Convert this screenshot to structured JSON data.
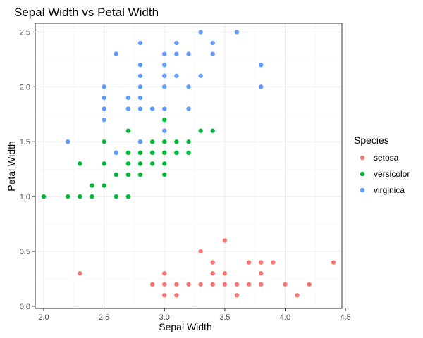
{
  "chart_data": {
    "type": "scatter",
    "title": "Sepal Width vs Petal Width",
    "xlabel": "Sepal Width",
    "ylabel": "Petal Width",
    "xlim": [
      1.93,
      4.47
    ],
    "ylim": [
      -0.02,
      2.58
    ],
    "x_ticks": [
      2.0,
      2.5,
      3.0,
      3.5,
      4.0,
      4.5
    ],
    "x_tick_labels": [
      "2.0",
      "2.5",
      "3.0",
      "3.5",
      "4.0",
      "4.5"
    ],
    "y_ticks": [
      0.0,
      0.5,
      1.0,
      1.5,
      2.0,
      2.5
    ],
    "y_tick_labels": [
      "0.0",
      "0.5",
      "1.0",
      "1.5",
      "2.0",
      "2.5"
    ],
    "grid": true,
    "legend": {
      "title": "Species",
      "position": "right"
    },
    "series": [
      {
        "name": "setosa",
        "color": "#F8766D",
        "points": [
          [
            2.3,
            0.3
          ],
          [
            2.9,
            0.2
          ],
          [
            3.0,
            0.3
          ],
          [
            3.0,
            0.2
          ],
          [
            3.0,
            0.1
          ],
          [
            3.1,
            0.2
          ],
          [
            3.1,
            0.1
          ],
          [
            3.2,
            0.2
          ],
          [
            3.3,
            0.5
          ],
          [
            3.3,
            0.2
          ],
          [
            3.4,
            0.4
          ],
          [
            3.4,
            0.3
          ],
          [
            3.4,
            0.2
          ],
          [
            3.5,
            0.6
          ],
          [
            3.5,
            0.3
          ],
          [
            3.5,
            0.2
          ],
          [
            3.6,
            0.2
          ],
          [
            3.6,
            0.1
          ],
          [
            3.7,
            0.4
          ],
          [
            3.7,
            0.2
          ],
          [
            3.8,
            0.4
          ],
          [
            3.8,
            0.3
          ],
          [
            3.8,
            0.2
          ],
          [
            3.9,
            0.4
          ],
          [
            4.0,
            0.2
          ],
          [
            4.1,
            0.1
          ],
          [
            4.2,
            0.2
          ],
          [
            4.4,
            0.4
          ]
        ]
      },
      {
        "name": "versicolor",
        "color": "#00BA38",
        "points": [
          [
            2.0,
            1.0
          ],
          [
            2.2,
            1.0
          ],
          [
            2.2,
            1.5
          ],
          [
            2.3,
            1.3
          ],
          [
            2.3,
            1.0
          ],
          [
            2.4,
            1.1
          ],
          [
            2.4,
            1.0
          ],
          [
            2.5,
            1.5
          ],
          [
            2.5,
            1.3
          ],
          [
            2.5,
            1.1
          ],
          [
            2.6,
            1.4
          ],
          [
            2.6,
            1.2
          ],
          [
            2.6,
            1.0
          ],
          [
            2.7,
            1.6
          ],
          [
            2.7,
            1.4
          ],
          [
            2.7,
            1.3
          ],
          [
            2.7,
            1.2
          ],
          [
            2.7,
            1.0
          ],
          [
            2.8,
            1.5
          ],
          [
            2.8,
            1.4
          ],
          [
            2.8,
            1.3
          ],
          [
            2.8,
            1.2
          ],
          [
            2.9,
            1.5
          ],
          [
            2.9,
            1.4
          ],
          [
            2.9,
            1.3
          ],
          [
            3.0,
            1.7
          ],
          [
            3.0,
            1.5
          ],
          [
            3.0,
            1.4
          ],
          [
            3.0,
            1.3
          ],
          [
            3.0,
            1.2
          ],
          [
            3.1,
            1.5
          ],
          [
            3.1,
            1.4
          ],
          [
            3.2,
            1.5
          ],
          [
            3.2,
            1.4
          ],
          [
            3.3,
            1.6
          ],
          [
            3.4,
            1.6
          ]
        ]
      },
      {
        "name": "virginica",
        "color": "#619CFF",
        "points": [
          [
            2.2,
            1.5
          ],
          [
            2.5,
            2.0
          ],
          [
            2.5,
            1.9
          ],
          [
            2.5,
            1.8
          ],
          [
            2.5,
            1.7
          ],
          [
            2.6,
            2.3
          ],
          [
            2.6,
            1.4
          ],
          [
            2.7,
            1.9
          ],
          [
            2.7,
            1.8
          ],
          [
            2.8,
            2.4
          ],
          [
            2.8,
            2.2
          ],
          [
            2.8,
            2.1
          ],
          [
            2.8,
            2.0
          ],
          [
            2.8,
            1.9
          ],
          [
            2.8,
            1.8
          ],
          [
            2.8,
            1.5
          ],
          [
            2.9,
            1.8
          ],
          [
            3.0,
            2.3
          ],
          [
            3.0,
            2.2
          ],
          [
            3.0,
            2.1
          ],
          [
            3.0,
            2.0
          ],
          [
            3.0,
            1.8
          ],
          [
            3.0,
            1.6
          ],
          [
            3.1,
            2.4
          ],
          [
            3.1,
            2.3
          ],
          [
            3.1,
            2.1
          ],
          [
            3.2,
            2.3
          ],
          [
            3.2,
            2.0
          ],
          [
            3.2,
            1.8
          ],
          [
            3.3,
            2.5
          ],
          [
            3.3,
            2.1
          ],
          [
            3.4,
            2.4
          ],
          [
            3.4,
            2.3
          ],
          [
            3.6,
            2.5
          ],
          [
            3.8,
            2.2
          ],
          [
            3.8,
            2.0
          ]
        ]
      }
    ]
  }
}
